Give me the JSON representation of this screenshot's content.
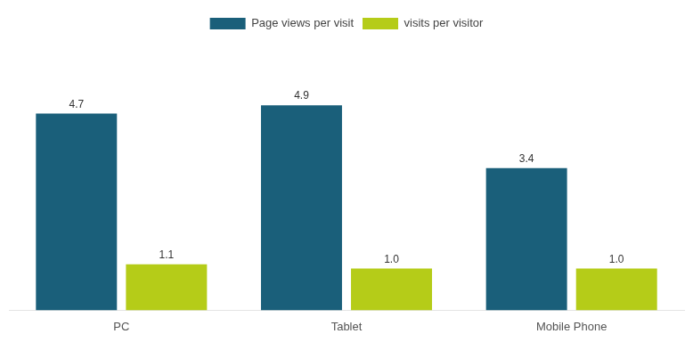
{
  "chart_data": {
    "type": "bar",
    "categories": [
      "PC",
      "Tablet",
      "Mobile Phone"
    ],
    "series": [
      {
        "name": "Page views per visit",
        "color": "#1a5f7a",
        "values": [
          4.7,
          4.9,
          3.4
        ]
      },
      {
        "name": "visits per visitor",
        "color": "#b5cc18",
        "values": [
          1.1,
          1.0,
          1.0
        ],
        "value_labels": [
          "1.1",
          "1.0",
          "1.0"
        ]
      }
    ],
    "ylim": [
      0,
      6.5
    ],
    "grid": false,
    "legend": "top",
    "data_labels": true,
    "tick_labels": "x"
  }
}
